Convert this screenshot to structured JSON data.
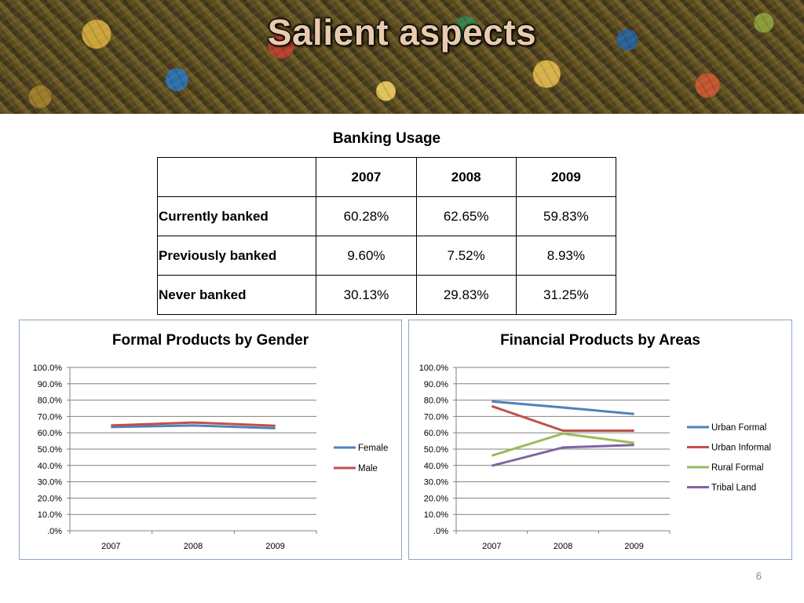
{
  "slide": {
    "title": "Salient aspects",
    "page_number": "6"
  },
  "banking_table": {
    "title": "Banking Usage",
    "header": [
      "",
      "2007",
      "2008",
      "2009"
    ],
    "rows": [
      {
        "label": "Currently banked",
        "values": [
          "60.28%",
          "62.65%",
          "59.83%"
        ]
      },
      {
        "label": "Previously banked",
        "values": [
          "9.60%",
          "7.52%",
          "8.93%"
        ]
      },
      {
        "label": "Never banked",
        "values": [
          "30.13%",
          "29.83%",
          "31.25%"
        ]
      }
    ]
  },
  "colors": {
    "blue": "#4f81bd",
    "red": "#c0504d",
    "green": "#9bbb59",
    "purple": "#8064a2",
    "grid": "#808080",
    "panel_border": "#8aa6c8"
  },
  "chart_data": [
    {
      "type": "line",
      "title": "Formal Products by Gender",
      "x": [
        "2007",
        "2008",
        "2009"
      ],
      "ylim": [
        0,
        100
      ],
      "y_ticks": [
        ".0%",
        "10.0%",
        "20.0%",
        "30.0%",
        "40.0%",
        "50.0%",
        "60.0%",
        "70.0%",
        "80.0%",
        "90.0%",
        "100.0%"
      ],
      "grid": true,
      "legend": "right",
      "series": [
        {
          "name": "Female",
          "color": "#4f81bd",
          "values": [
            63.5,
            64.5,
            62.8
          ]
        },
        {
          "name": "Male",
          "color": "#c0504d",
          "values": [
            64.5,
            66.3,
            64.3
          ]
        }
      ]
    },
    {
      "type": "line",
      "title": "Financial Products by Areas",
      "x": [
        "2007",
        "2008",
        "2009"
      ],
      "ylim": [
        0,
        100
      ],
      "y_ticks": [
        ".0%",
        "10.0%",
        "20.0%",
        "30.0%",
        "40.0%",
        "50.0%",
        "60.0%",
        "70.0%",
        "80.0%",
        "90.0%",
        "100.0%"
      ],
      "grid": true,
      "legend": "right",
      "series": [
        {
          "name": "Urban Formal",
          "color": "#4f81bd",
          "values": [
            79.2,
            75.5,
            71.5
          ]
        },
        {
          "name": "Urban Informal",
          "color": "#c0504d",
          "values": [
            76.3,
            61.3,
            61.3
          ]
        },
        {
          "name": "Rural Formal",
          "color": "#9bbb59",
          "values": [
            46.0,
            59.5,
            53.8
          ]
        },
        {
          "name": "Tribal Land",
          "color": "#8064a2",
          "values": [
            39.8,
            51.0,
            52.5
          ]
        }
      ]
    }
  ]
}
